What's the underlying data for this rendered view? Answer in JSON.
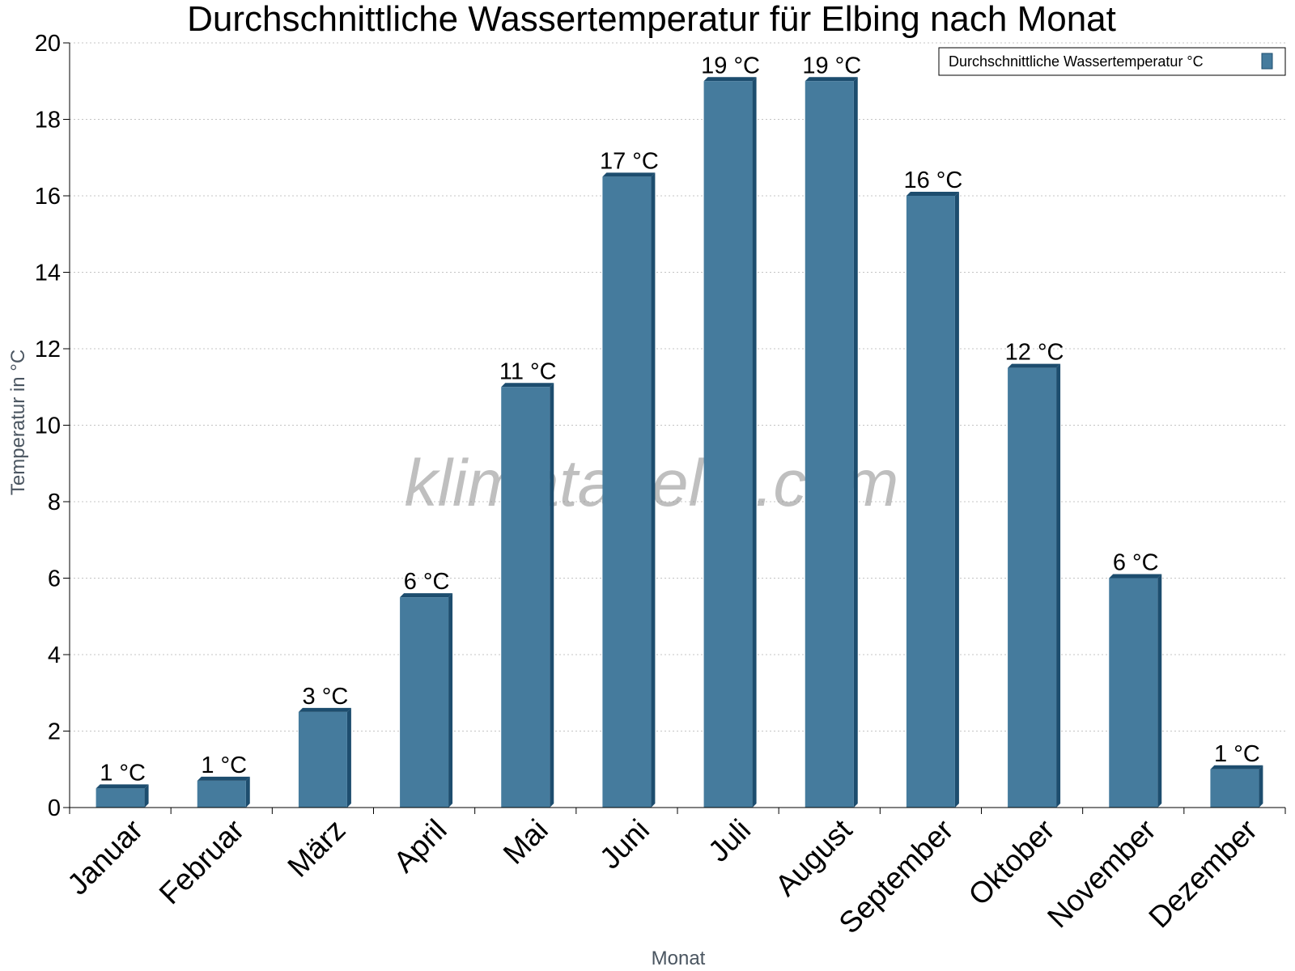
{
  "chart_data": {
    "type": "bar",
    "title": "Durchschnittliche Wassertemperatur für Elbing nach Monat",
    "xlabel": "Monat",
    "ylabel": "Temperatur in °C",
    "categories": [
      "Januar",
      "Februar",
      "März",
      "April",
      "Mai",
      "Juni",
      "Juli",
      "August",
      "September",
      "Oktober",
      "November",
      "Dezember"
    ],
    "series": [
      {
        "name": "Durchschnittliche Wassertemperatur °C",
        "values": [
          0.5,
          0.7,
          2.5,
          5.5,
          11,
          16.5,
          19,
          19,
          16,
          11.5,
          6,
          1
        ],
        "labels": [
          "1 °C",
          "1 °C",
          "3 °C",
          "6 °C",
          "11 °C",
          "17 °C",
          "19 °C",
          "19 °C",
          "16 °C",
          "12 °C",
          "6 °C",
          "1 °C"
        ],
        "color": "#457b9d",
        "shade_color": "#1d4d6e"
      }
    ],
    "ylim": [
      0,
      20
    ],
    "yticks": [
      0,
      2,
      4,
      6,
      8,
      10,
      12,
      14,
      16,
      18,
      20
    ],
    "grid": true,
    "legend_position": "top-right",
    "watermark": "klimatabelle.com"
  }
}
